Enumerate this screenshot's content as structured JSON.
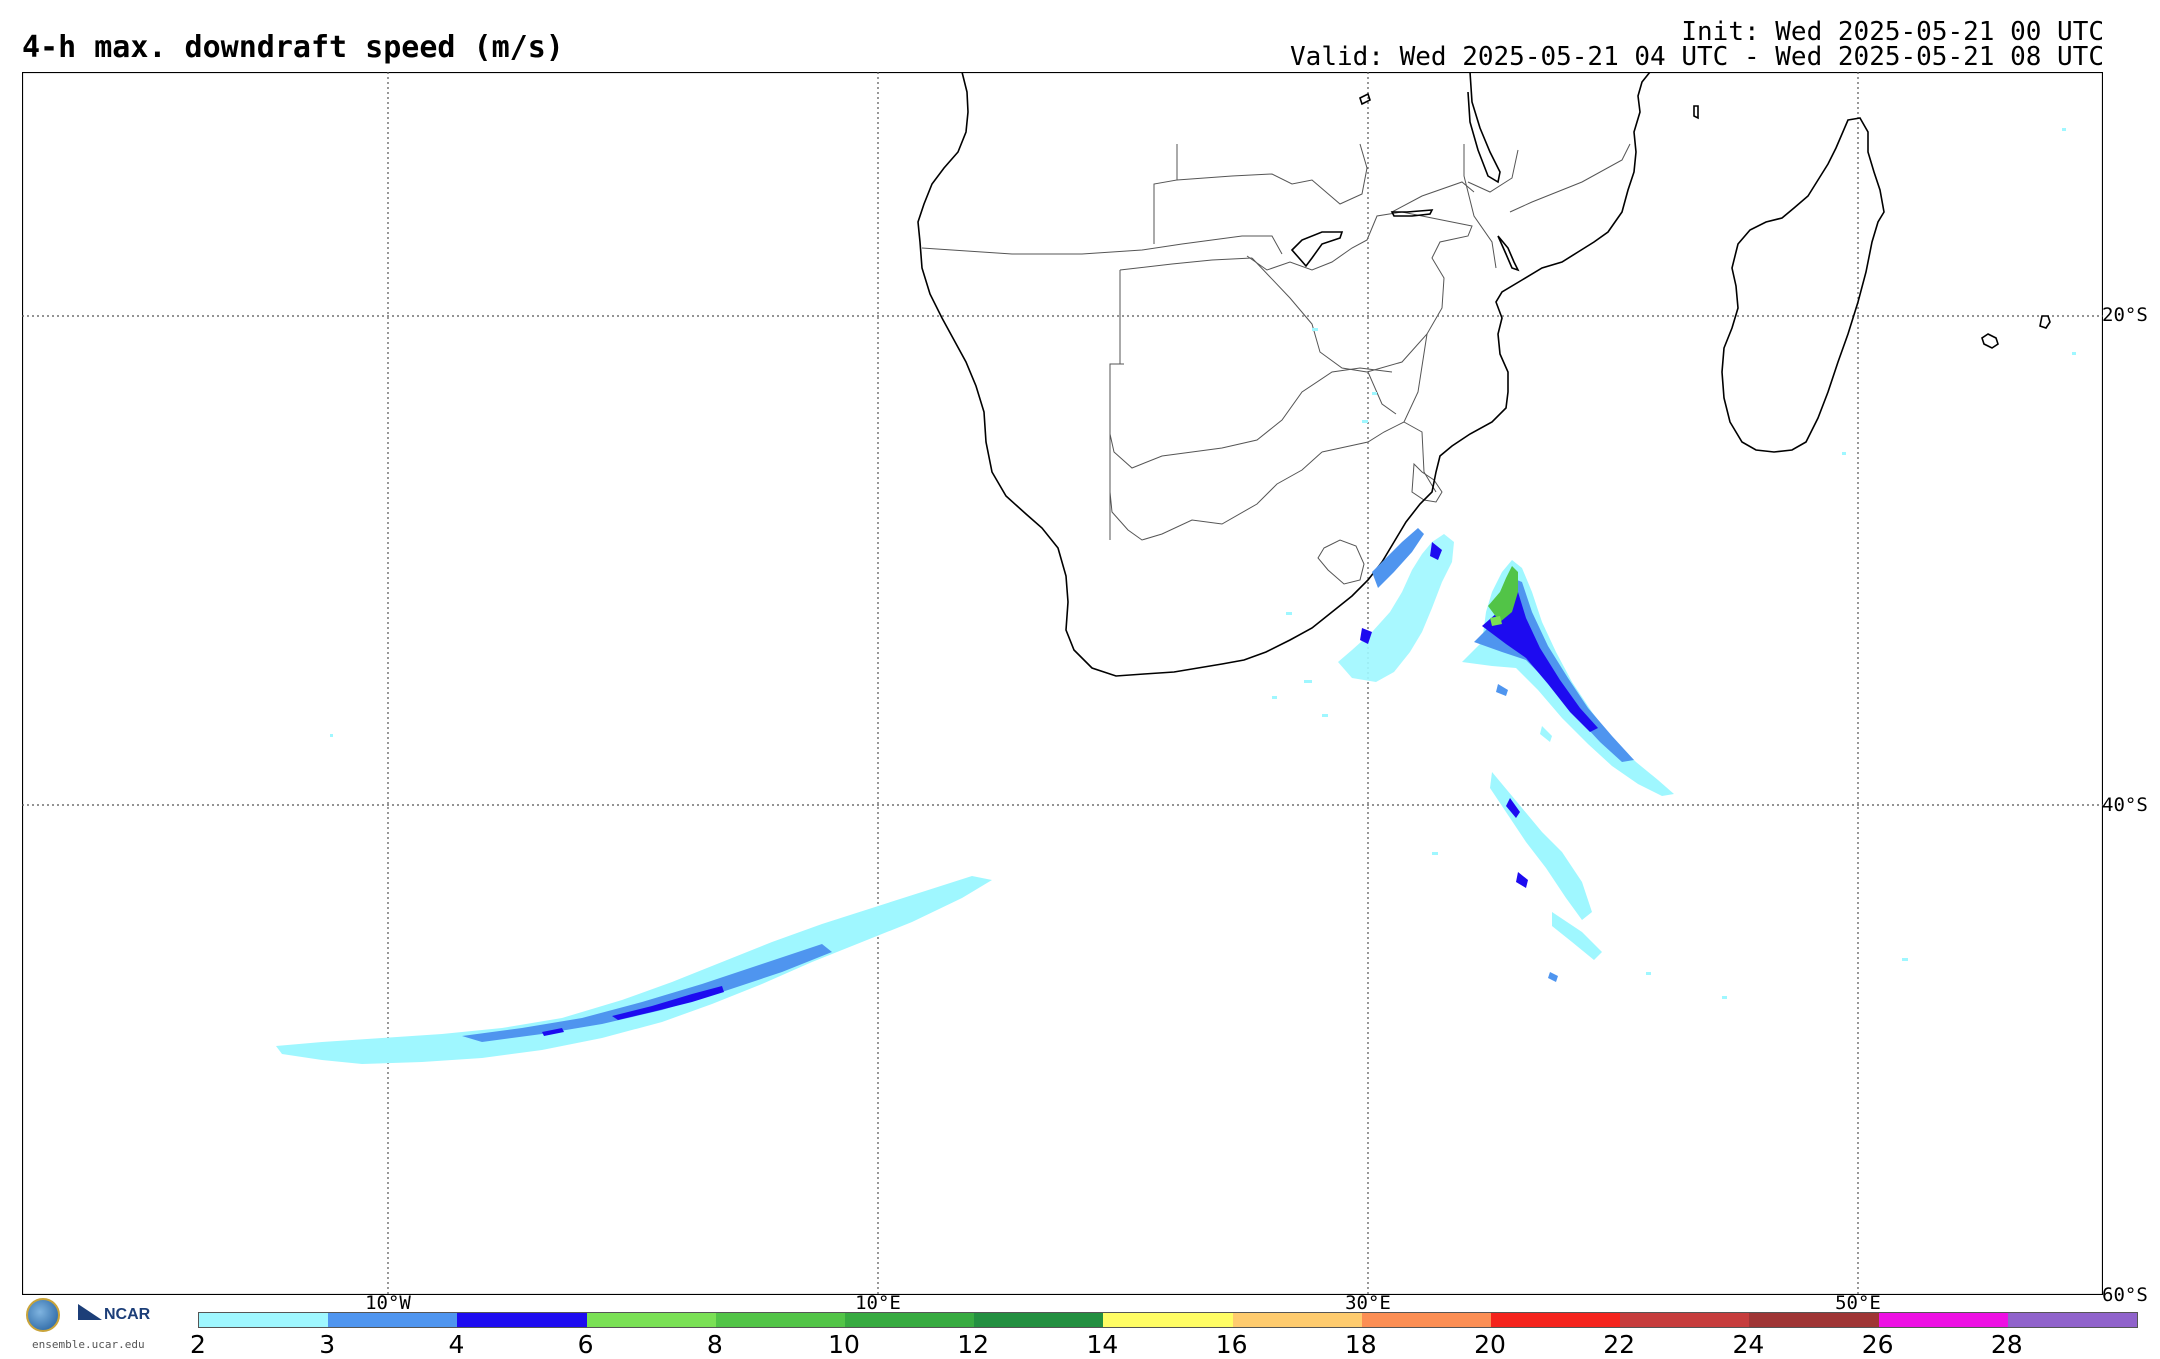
{
  "header": {
    "title": "4-h max. downdraft speed (m/s)",
    "init": "Init: Wed 2025-05-21 00 UTC",
    "valid": "Valid: Wed 2025-05-21 04 UTC - Wed 2025-05-21 08 UTC"
  },
  "map": {
    "lat_labels": [
      "20°S",
      "40°S",
      "60°S"
    ],
    "lon_labels": [
      "10°W",
      "10°E",
      "30°E",
      "50°E"
    ]
  },
  "logos": {
    "org": "NCAR",
    "url": "ensemble.ucar.edu"
  },
  "colorbar": {
    "ticks": [
      "2",
      "3",
      "4",
      "6",
      "8",
      "10",
      "12",
      "14",
      "16",
      "18",
      "20",
      "22",
      "24",
      "26",
      "28"
    ],
    "colors": [
      "#9ff7ff",
      "#4f95ef",
      "#1d0bf0",
      "#7ae055",
      "#52c447",
      "#37aa40",
      "#238f40",
      "#fffd64",
      "#fecb6e",
      "#fb8e54",
      "#f4231c",
      "#c63c3c",
      "#9f3535",
      "#ee10e4",
      "#9063cb"
    ]
  }
}
